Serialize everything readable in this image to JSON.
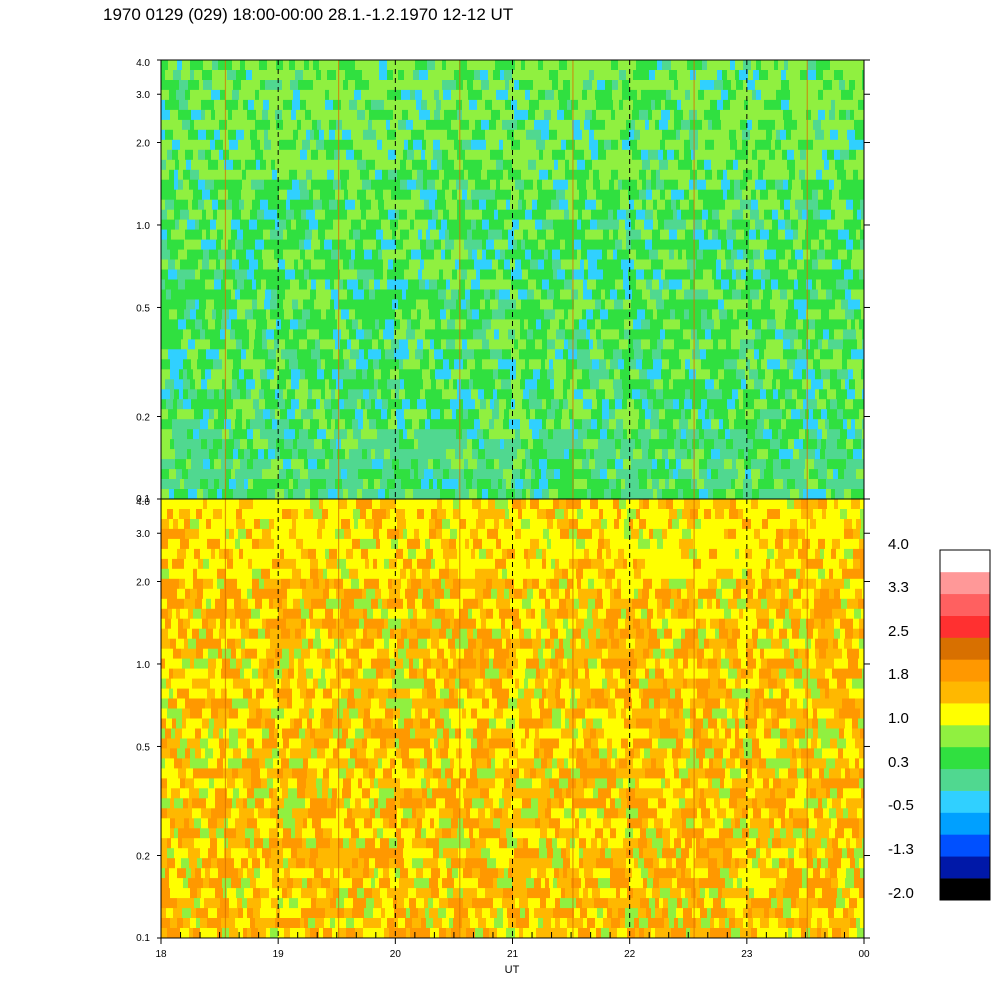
{
  "title": "1970 0129 (029) 18:00-00:00 28.1.-1.2.1970  12-12 UT",
  "chart_data": [
    {
      "type": "heatmap",
      "panel": "upper",
      "x": {
        "ticks": [
          "18",
          "19",
          "20",
          "21",
          "22",
          "23",
          "00"
        ],
        "range": [
          18,
          24
        ]
      },
      "y": {
        "ticks": [
          "0.1",
          "0.2",
          "0.5",
          "1.0",
          "2.0",
          "3.0",
          "4.0"
        ],
        "range": [
          0.1,
          4.0
        ],
        "scale": "log"
      },
      "dominant_color": "green",
      "dashed_hour_markers": true
    },
    {
      "type": "heatmap",
      "panel": "lower",
      "x": {
        "ticks": [
          "18",
          "19",
          "20",
          "21",
          "22",
          "23",
          "00"
        ],
        "range": [
          18,
          24
        ]
      },
      "y": {
        "ticks": [
          "0.1",
          "0.2",
          "0.5",
          "1.0",
          "2.0",
          "3.0",
          "4.0"
        ],
        "range": [
          0.1,
          4.0
        ],
        "scale": "log"
      },
      "dominant_color": "orange",
      "dashed_hour_markers": true
    }
  ],
  "xlabel": "UT",
  "colorbar": {
    "labels": [
      "4.0",
      "3.3",
      "2.5",
      "1.8",
      "1.0",
      "0.3",
      "-0.5",
      "-1.3",
      "-2.0"
    ],
    "colors": [
      "#000000",
      "#0018a8",
      "#0050ff",
      "#00a0ff",
      "#30d0ff",
      "#50d890",
      "#30e040",
      "#90f040",
      "#ffff00",
      "#ffb800",
      "#ff9800",
      "#d87000",
      "#ff3030",
      "#ff6060",
      "#ff9898",
      "#ffffff"
    ]
  }
}
